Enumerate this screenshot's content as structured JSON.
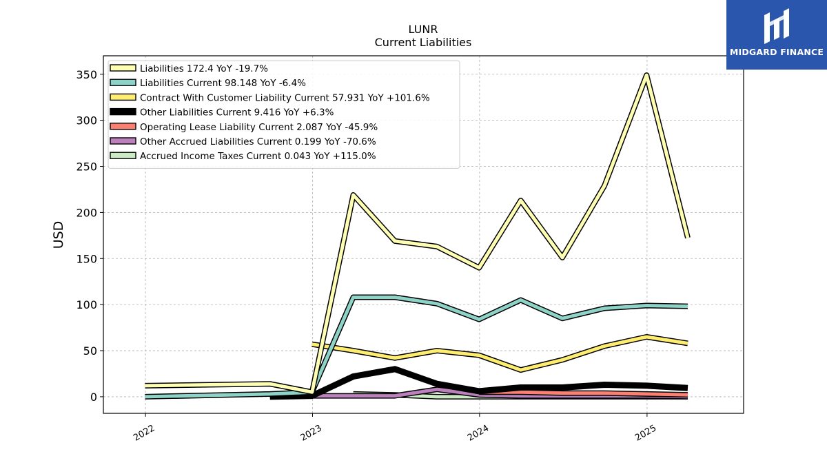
{
  "logo": {
    "brand_name": "MIDGARD FINANCE",
    "icon": "midgard-finance-logo-icon",
    "color": "#2a57ad"
  },
  "chart_data": {
    "type": "line",
    "title": "LUNR",
    "subtitle": "Current  Liabilities",
    "xlabel": "",
    "ylabel": "USD",
    "xlim": [
      "2021-10-01",
      "2025-07-31"
    ],
    "ylim": [
      -18,
      370
    ],
    "xticks": [
      {
        "date": "2022-01-01",
        "label": "2022"
      },
      {
        "date": "2023-01-01",
        "label": "2023"
      },
      {
        "date": "2024-01-01",
        "label": "2024"
      },
      {
        "date": "2025-01-01",
        "label": "2025"
      }
    ],
    "yticks": [
      0,
      50,
      100,
      150,
      200,
      250,
      300,
      350
    ],
    "grid": true,
    "legend_position": "top-left",
    "series": [
      {
        "name": "Liabilities",
        "legend": "Liabilities  172.4 YoY -19.7%",
        "color": "#ffffb3",
        "x": [
          "2021-12-31",
          "2022-09-30",
          "2022-12-31",
          "2023-03-31",
          "2023-06-30",
          "2023-09-30",
          "2023-12-31",
          "2024-03-31",
          "2024-06-30",
          "2024-09-30",
          "2024-12-31",
          "2025-03-31"
        ],
        "y": [
          12,
          14,
          5,
          219,
          169,
          163,
          140,
          213,
          151,
          229,
          349,
          172.4
        ]
      },
      {
        "name": "Liabilities Current",
        "legend": "Liabilities Current  98.148 YoY -6.4%",
        "color": "#8dd3c7",
        "x": [
          "2021-12-31",
          "2022-09-30",
          "2022-12-31",
          "2023-03-31",
          "2023-06-30",
          "2023-09-30",
          "2023-12-31",
          "2024-03-31",
          "2024-06-30",
          "2024-09-30",
          "2024-12-31",
          "2025-03-31"
        ],
        "y": [
          0,
          3,
          5,
          108,
          108,
          101,
          84,
          105,
          85,
          96,
          99,
          98.148
        ]
      },
      {
        "name": "Contract With Customer Liability Current",
        "legend": "Contract With Customer Liability Current  57.931 YoY +101.6%",
        "color": "#ffed6f",
        "x": [
          "2022-12-31",
          "2023-03-31",
          "2023-06-30",
          "2023-09-30",
          "2023-12-31",
          "2024-03-31",
          "2024-06-30",
          "2024-09-30",
          "2024-12-31",
          "2025-03-31"
        ],
        "y": [
          57,
          50,
          42,
          50,
          45,
          29,
          40,
          55,
          65,
          57.931
        ]
      },
      {
        "name": "Other Liabilities Current",
        "legend": "Other Liabilities Current  9.416 YoY +6.3%",
        "color": "#000000",
        "x": [
          "2022-09-30",
          "2022-12-31",
          "2023-03-31",
          "2023-06-30",
          "2023-09-30",
          "2023-12-31",
          "2024-03-31",
          "2024-06-30",
          "2024-09-30",
          "2024-12-31",
          "2025-03-31"
        ],
        "y": [
          0,
          1,
          22,
          30,
          14,
          6,
          10,
          10,
          13,
          12,
          9.416
        ]
      },
      {
        "name": "Operating Lease Liability Current",
        "legend": "Operating Lease Liability Current  2.087 YoY -45.9%",
        "color": "#fb8072",
        "x": [
          "2023-12-31",
          "2024-03-31",
          "2024-06-30",
          "2024-09-30",
          "2024-12-31",
          "2025-03-31"
        ],
        "y": [
          5,
          5,
          4,
          4,
          3,
          2.087
        ]
      },
      {
        "name": "Other Accrued Liabilities Current",
        "legend": "Other Accrued Liabilities Current  0.199 YoY -70.6%",
        "color": "#bc80bd",
        "x": [
          "2022-12-31",
          "2023-03-31",
          "2023-06-30",
          "2023-09-30",
          "2023-12-31",
          "2024-03-31",
          "2024-06-30",
          "2024-09-30",
          "2024-12-31",
          "2025-03-31"
        ],
        "y": [
          1,
          1,
          1,
          8,
          2,
          1,
          1,
          1,
          1,
          0.199
        ]
      },
      {
        "name": "Accrued Income Taxes Current",
        "legend": "Accrued Income Taxes Current  0.043 YoY +115.0%",
        "color": "#ccebc5",
        "x": [
          "2023-03-31",
          "2023-06-30",
          "2023-09-30",
          "2023-12-31",
          "2024-03-31",
          "2024-06-30",
          "2024-09-30",
          "2024-12-31",
          "2025-03-31"
        ],
        "y": [
          3,
          2,
          0,
          0,
          0,
          0,
          0,
          0,
          0.043
        ]
      }
    ]
  }
}
